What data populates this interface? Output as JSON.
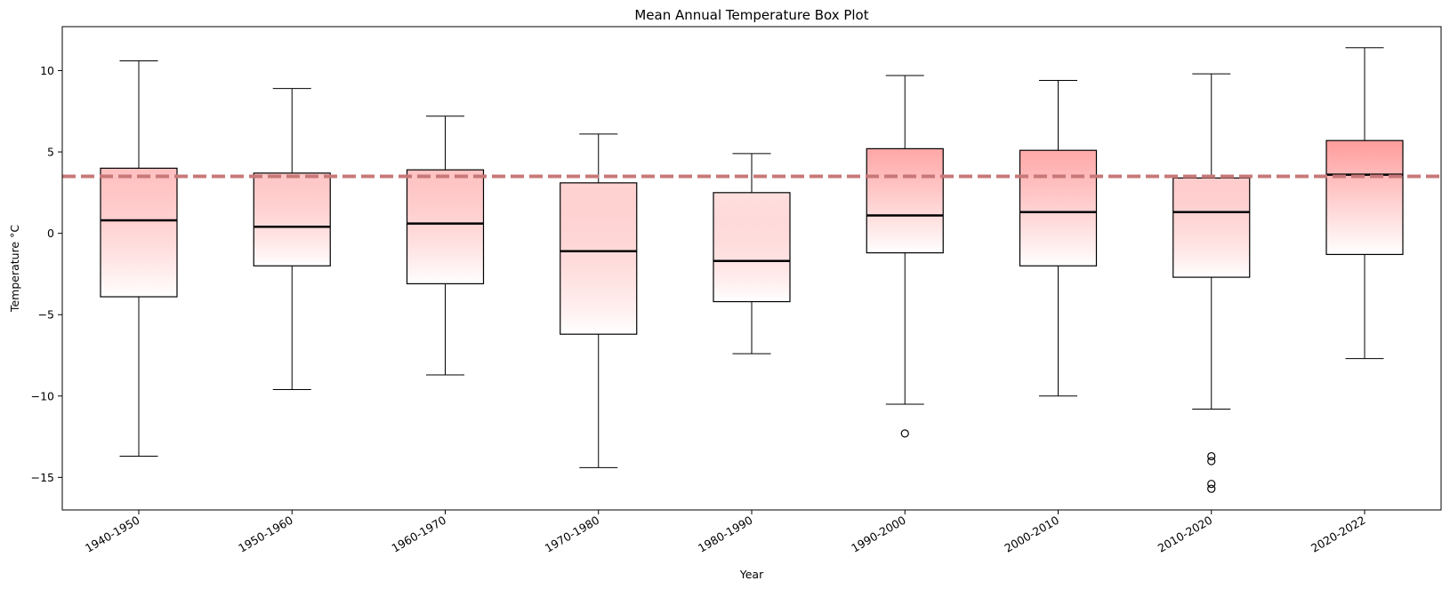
{
  "chart_data": {
    "type": "boxplot",
    "title": "Mean Annual Temperature Box Plot",
    "xlabel": "Year",
    "ylabel": "Temperature °C",
    "ylim": [
      -17.0,
      12.7
    ],
    "yticks": [
      10,
      5,
      0,
      -5,
      -10,
      -15
    ],
    "ytick_labels": [
      "10",
      "5",
      "0",
      "−5",
      "−10",
      "−15"
    ],
    "reference_line": {
      "value": 3.5,
      "style": "dashed",
      "color": "#c87878"
    },
    "gradient_color": "#ff9a9a",
    "grid": false,
    "boxes": [
      {
        "label": "1940-1950",
        "whisker_low": -13.7,
        "q1": -3.9,
        "median": 0.8,
        "q3": 4.0,
        "whisker_high": 10.6,
        "outliers": []
      },
      {
        "label": "1950-1960",
        "whisker_low": -9.6,
        "q1": -2.0,
        "median": 0.4,
        "q3": 3.7,
        "whisker_high": 8.9,
        "outliers": []
      },
      {
        "label": "1960-1970",
        "whisker_low": -8.7,
        "q1": -3.1,
        "median": 0.6,
        "q3": 3.9,
        "whisker_high": 7.2,
        "outliers": []
      },
      {
        "label": "1970-1980",
        "whisker_low": -14.4,
        "q1": -6.2,
        "median": -1.1,
        "q3": 3.1,
        "whisker_high": 6.1,
        "outliers": []
      },
      {
        "label": "1980-1990",
        "whisker_low": -7.4,
        "q1": -4.2,
        "median": -1.7,
        "q3": 2.5,
        "whisker_high": 4.9,
        "outliers": []
      },
      {
        "label": "1990-2000",
        "whisker_low": -10.5,
        "q1": -1.2,
        "median": 1.1,
        "q3": 5.2,
        "whisker_high": 9.7,
        "outliers": [
          -12.3
        ]
      },
      {
        "label": "2000-2010",
        "whisker_low": -10.0,
        "q1": -2.0,
        "median": 1.3,
        "q3": 5.1,
        "whisker_high": 9.4,
        "outliers": []
      },
      {
        "label": "2010-2020",
        "whisker_low": -10.8,
        "q1": -2.7,
        "median": 1.3,
        "q3": 3.4,
        "whisker_high": 9.8,
        "outliers": [
          -13.7,
          -14.0,
          -15.4,
          -15.7
        ]
      },
      {
        "label": "2020-2022",
        "whisker_low": -7.7,
        "q1": -1.3,
        "median": 3.6,
        "q3": 5.7,
        "whisker_high": 11.4,
        "outliers": []
      }
    ]
  }
}
